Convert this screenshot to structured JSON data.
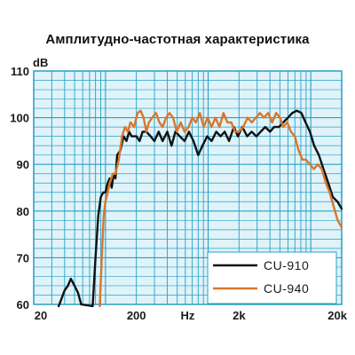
{
  "chart_data": {
    "type": "line",
    "title": "Амплитудно-частотная характеристика",
    "ylabel": "dB",
    "xlabel": "Hz",
    "xscale": "log",
    "xlim": [
      20,
      20000
    ],
    "ylim": [
      60,
      110
    ],
    "grid": true,
    "legend_position": "bottom-right",
    "x_tick_labels": [
      {
        "value": 20,
        "label": "20"
      },
      {
        "value": 200,
        "label": "200"
      },
      {
        "value": 632,
        "label": "Hz"
      },
      {
        "value": 2000,
        "label": "2k"
      },
      {
        "value": 20000,
        "label": "20k"
      }
    ],
    "y_tick_labels": [
      {
        "value": 110,
        "label": "110"
      },
      {
        "value": 100,
        "label": "100"
      },
      {
        "value": 90,
        "label": "90"
      },
      {
        "value": 80,
        "label": "80"
      },
      {
        "value": 70,
        "label": "70"
      },
      {
        "value": 60,
        "label": "60"
      }
    ],
    "colors": {
      "plot_background": "#dff3f9",
      "grid": "#2a9fc6",
      "border": "#2a9fc6"
    },
    "series": [
      {
        "name": "CU-910",
        "color": "#111111",
        "points": [
          [
            35,
            59
          ],
          [
            37,
            61
          ],
          [
            40,
            63
          ],
          [
            43,
            64
          ],
          [
            46,
            65.5
          ],
          [
            50,
            64
          ],
          [
            54,
            62.5
          ],
          [
            58,
            60
          ],
          [
            75,
            59
          ],
          [
            80,
            70
          ],
          [
            85,
            79
          ],
          [
            90,
            83
          ],
          [
            95,
            84
          ],
          [
            100,
            84
          ],
          [
            105,
            86
          ],
          [
            110,
            87
          ],
          [
            115,
            85
          ],
          [
            120,
            88
          ],
          [
            125,
            87
          ],
          [
            130,
            92
          ],
          [
            140,
            93
          ],
          [
            150,
            96
          ],
          [
            160,
            95
          ],
          [
            170,
            97
          ],
          [
            180,
            96
          ],
          [
            200,
            96
          ],
          [
            215,
            95
          ],
          [
            230,
            97
          ],
          [
            250,
            97
          ],
          [
            275,
            96
          ],
          [
            300,
            95
          ],
          [
            330,
            97
          ],
          [
            360,
            95
          ],
          [
            400,
            97
          ],
          [
            440,
            94
          ],
          [
            480,
            97
          ],
          [
            530,
            96
          ],
          [
            590,
            95
          ],
          [
            650,
            97
          ],
          [
            720,
            95
          ],
          [
            800,
            92
          ],
          [
            880,
            94
          ],
          [
            980,
            96
          ],
          [
            1080,
            95
          ],
          [
            1200,
            97
          ],
          [
            1320,
            96
          ],
          [
            1450,
            97
          ],
          [
            1600,
            95
          ],
          [
            1780,
            98
          ],
          [
            1950,
            96
          ],
          [
            2150,
            98
          ],
          [
            2400,
            96
          ],
          [
            2650,
            97
          ],
          [
            2950,
            96
          ],
          [
            3250,
            97
          ],
          [
            3600,
            98
          ],
          [
            4000,
            97
          ],
          [
            4400,
            98
          ],
          [
            4900,
            98
          ],
          [
            5400,
            99
          ],
          [
            6000,
            100
          ],
          [
            6600,
            101
          ],
          [
            7300,
            101.5
          ],
          [
            8100,
            101
          ],
          [
            8900,
            99
          ],
          [
            9800,
            97
          ],
          [
            10800,
            94
          ],
          [
            12000,
            92
          ],
          [
            13300,
            89
          ],
          [
            14800,
            86
          ],
          [
            16400,
            83
          ],
          [
            18200,
            82
          ],
          [
            20000,
            80.5
          ]
        ]
      },
      {
        "name": "CU-940",
        "color": "#d9762b",
        "points": [
          [
            88,
            59
          ],
          [
            92,
            70
          ],
          [
            96,
            79
          ],
          [
            100,
            82
          ],
          [
            105,
            84
          ],
          [
            110,
            86
          ],
          [
            118,
            88
          ],
          [
            125,
            88
          ],
          [
            135,
            91
          ],
          [
            145,
            96
          ],
          [
            155,
            98
          ],
          [
            165,
            97
          ],
          [
            175,
            99
          ],
          [
            190,
            98
          ],
          [
            205,
            101
          ],
          [
            220,
            101.5
          ],
          [
            235,
            100
          ],
          [
            250,
            97
          ],
          [
            265,
            99
          ],
          [
            285,
            100
          ],
          [
            310,
            101
          ],
          [
            335,
            99
          ],
          [
            360,
            98
          ],
          [
            390,
            100
          ],
          [
            420,
            101
          ],
          [
            455,
            100
          ],
          [
            495,
            97
          ],
          [
            540,
            99
          ],
          [
            590,
            97
          ],
          [
            645,
            98
          ],
          [
            700,
            100
          ],
          [
            760,
            99
          ],
          [
            830,
            101
          ],
          [
            905,
            98
          ],
          [
            990,
            100
          ],
          [
            1080,
            98
          ],
          [
            1180,
            100
          ],
          [
            1290,
            98
          ],
          [
            1410,
            101
          ],
          [
            1540,
            99
          ],
          [
            1680,
            99
          ],
          [
            1830,
            97
          ],
          [
            2000,
            97
          ],
          [
            2200,
            98
          ],
          [
            2420,
            100
          ],
          [
            2660,
            99
          ],
          [
            2920,
            100
          ],
          [
            3200,
            101
          ],
          [
            3500,
            100
          ],
          [
            3850,
            101
          ],
          [
            4200,
            99
          ],
          [
            4600,
            101
          ],
          [
            5000,
            100
          ],
          [
            5400,
            98
          ],
          [
            5900,
            99
          ],
          [
            6400,
            97
          ],
          [
            7000,
            96
          ],
          [
            7600,
            93
          ],
          [
            8300,
            91
          ],
          [
            9000,
            91
          ],
          [
            9800,
            90
          ],
          [
            10700,
            89
          ],
          [
            11700,
            90
          ],
          [
            12800,
            89
          ],
          [
            14000,
            86
          ],
          [
            15300,
            84
          ],
          [
            16700,
            81
          ],
          [
            18300,
            78
          ],
          [
            20000,
            76.5
          ]
        ]
      }
    ]
  }
}
